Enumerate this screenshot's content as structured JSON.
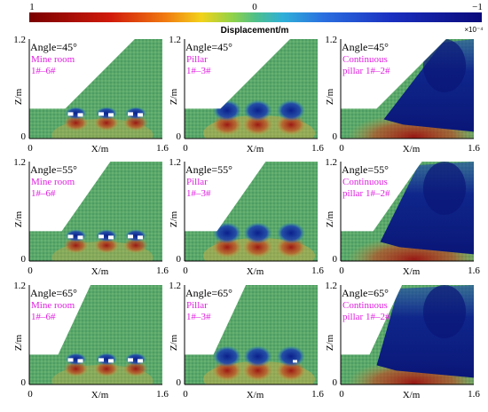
{
  "colorbar": {
    "label": "Displacement/m",
    "max_label": "1",
    "mid_label": "0",
    "min_label": "−1",
    "scale_label": "×10⁻⁴"
  },
  "axes": {
    "x_label": "X/m",
    "y_label": "Z/m",
    "x_tick_start": "0",
    "x_tick_end": "1.6",
    "y_tick_start": "0",
    "y_tick_end": "1.2"
  },
  "panels": [
    {
      "angle_label": "Angle=45°",
      "case_line1": "Mine room",
      "case_line2": "1#–6#",
      "case": "room"
    },
    {
      "angle_label": "Angle=45°",
      "case_line1": "Pillar",
      "case_line2": "1#–3#",
      "case": "pillar"
    },
    {
      "angle_label": "Angle=45°",
      "case_line1": "Continuous",
      "case_line2": "pillar 1#–2#",
      "case": "continuous"
    },
    {
      "angle_label": "Angle=55°",
      "case_line1": "Mine room",
      "case_line2": "1#–6#",
      "case": "room"
    },
    {
      "angle_label": "Angle=55°",
      "case_line1": "Pillar",
      "case_line2": "1#–3#",
      "case": "pillar"
    },
    {
      "angle_label": "Angle=55°",
      "case_line1": "Continuous",
      "case_line2": "pillar 1#–2#",
      "case": "continuous"
    },
    {
      "angle_label": "Angle=65°",
      "case_line1": "Mine room",
      "case_line2": "1#–6#",
      "case": "room"
    },
    {
      "angle_label": "Angle=65°",
      "case_line1": "Pillar",
      "case_line2": "1#–3#",
      "case": "pillar"
    },
    {
      "angle_label": "Angle=65°",
      "case_line1": "Continuous",
      "case_line2": "pillar 1#–2#",
      "case": "continuous"
    }
  ],
  "colors": {
    "case_label": "#e020e0",
    "ground_green": "#5aa86a",
    "ground_dark": "#3f8f5a",
    "uplift_red": "#9b1010",
    "subsidence_blue": "#0b1f8c"
  }
}
